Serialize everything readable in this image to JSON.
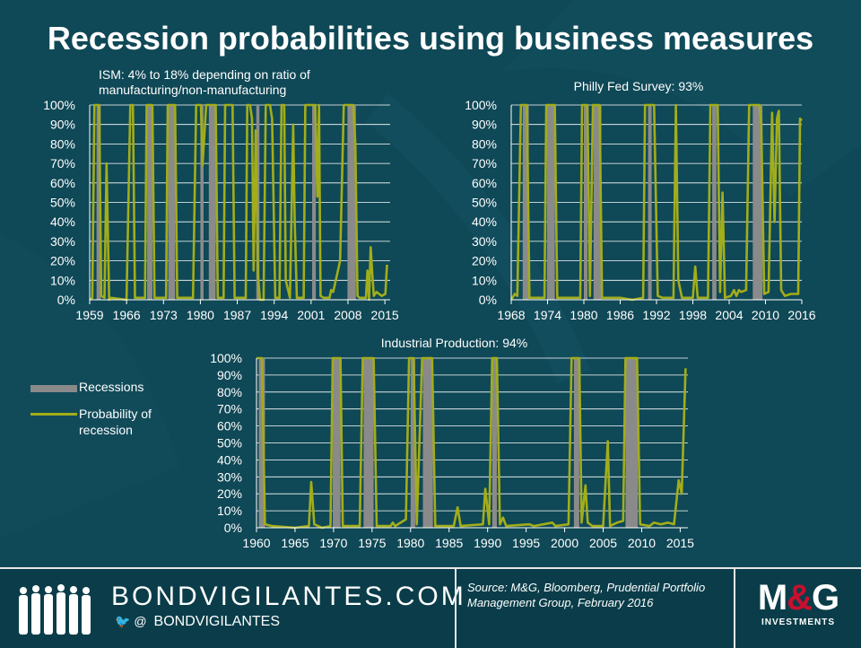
{
  "title": "Recession probabilities using business measures",
  "colors": {
    "background": "#0f4856",
    "probability": "#a2ad1a",
    "recession": "#8a8a8a",
    "grid": "#ffffff",
    "brand_red": "#c8102e"
  },
  "legend": {
    "recessions": "Recessions",
    "probability": "Probability of recession"
  },
  "footer": {
    "site": "BONDVIGILANTES.COM",
    "handle_icons": "🐦 @",
    "handle": "BONDVIGILANTES",
    "source": "Source: M&G, Bloomberg, Prudential Portfolio Management Group, February 2016",
    "logo_m": "M",
    "logo_amp": "&",
    "logo_g": "G",
    "logo_sub": "INVESTMENTS"
  },
  "chart_data": [
    {
      "type": "line",
      "title": "ISM: 4% to 18% depending on ratio of manufacturing/non-manufacturing",
      "xlim": [
        1959,
        2016
      ],
      "ylim": [
        0,
        100
      ],
      "xticks": [
        1959,
        1966,
        1973,
        1980,
        1987,
        1994,
        2001,
        2008,
        2015
      ],
      "yticks": [
        "0%",
        "10%",
        "20%",
        "30%",
        "40%",
        "50%",
        "60%",
        "70%",
        "80%",
        "90%",
        "100%"
      ],
      "recessions": [
        [
          1960.3,
          1961.1
        ],
        [
          1969.9,
          1970.9
        ],
        [
          1973.9,
          1975.2
        ],
        [
          1980.0,
          1980.6
        ],
        [
          1981.6,
          1982.9
        ],
        [
          1990.6,
          1991.2
        ],
        [
          2001.2,
          2001.9
        ],
        [
          2007.9,
          2009.5
        ]
      ],
      "series": [
        {
          "name": "Probability of recession",
          "points": [
            [
              1959,
              0
            ],
            [
              1959.5,
              1
            ],
            [
              1959.9,
              100
            ],
            [
              1960.8,
              100
            ],
            [
              1961.2,
              2
            ],
            [
              1961.8,
              1
            ],
            [
              1962.2,
              70
            ],
            [
              1962.7,
              0
            ],
            [
              1963,
              1
            ],
            [
              1966,
              0
            ],
            [
              1966.7,
              100
            ],
            [
              1967.2,
              100
            ],
            [
              1967.6,
              1
            ],
            [
              1969.5,
              1
            ],
            [
              1969.8,
              100
            ],
            [
              1970.9,
              100
            ],
            [
              1971.3,
              1
            ],
            [
              1973.5,
              1
            ],
            [
              1973.8,
              100
            ],
            [
              1975.2,
              100
            ],
            [
              1975.6,
              1
            ],
            [
              1978.6,
              1
            ],
            [
              1979.2,
              100
            ],
            [
              1980.1,
              100
            ],
            [
              1980.4,
              69
            ],
            [
              1981.1,
              100
            ],
            [
              1982.9,
              100
            ],
            [
              1983.3,
              1
            ],
            [
              1984.4,
              1
            ],
            [
              1984.7,
              100
            ],
            [
              1986.1,
              100
            ],
            [
              1986.5,
              1
            ],
            [
              1988.6,
              1
            ],
            [
              1988.9,
              100
            ],
            [
              1989.4,
              100
            ],
            [
              1989.8,
              93
            ],
            [
              1990.1,
              15
            ],
            [
              1990.5,
              87
            ],
            [
              1990.9,
              14
            ],
            [
              1991.3,
              0
            ],
            [
              1992,
              0
            ],
            [
              1992.4,
              100
            ],
            [
              1993.2,
              100
            ],
            [
              1993.6,
              93
            ],
            [
              1994.2,
              1
            ],
            [
              1995,
              1
            ],
            [
              1995.4,
              100
            ],
            [
              1995.9,
              100
            ],
            [
              1996.2,
              10
            ],
            [
              1997,
              1
            ],
            [
              1997.6,
              90
            ],
            [
              1997.9,
              40
            ],
            [
              1998.3,
              1
            ],
            [
              1999.6,
              1
            ],
            [
              1999.9,
              100
            ],
            [
              2001.8,
              100
            ],
            [
              2002.2,
              53
            ],
            [
              2002.5,
              100
            ],
            [
              2002.8,
              2
            ],
            [
              2003.4,
              1
            ],
            [
              2004.5,
              1
            ],
            [
              2004.8,
              5
            ],
            [
              2005.2,
              4
            ],
            [
              2006.5,
              20
            ],
            [
              2007.2,
              100
            ],
            [
              2009,
              100
            ],
            [
              2009.4,
              80
            ],
            [
              2009.8,
              2
            ],
            [
              2010.2,
              1
            ],
            [
              2011.4,
              1
            ],
            [
              2011.7,
              15
            ],
            [
              2012,
              0
            ],
            [
              2012.3,
              27
            ],
            [
              2012.6,
              14
            ],
            [
              2012.9,
              2
            ],
            [
              2013.4,
              4
            ],
            [
              2013.9,
              3
            ],
            [
              2014.4,
              2
            ],
            [
              2015.1,
              3
            ],
            [
              2015.4,
              18
            ]
          ]
        }
      ],
      "xlabel": "",
      "ylabel": ""
    },
    {
      "type": "line",
      "title": "Philly Fed Survey: 93%",
      "xlim": [
        1968,
        2016
      ],
      "ylim": [
        0,
        100
      ],
      "xticks": [
        1968,
        1974,
        1980,
        1986,
        1992,
        1998,
        2004,
        2010,
        2016
      ],
      "yticks": [
        "0%",
        "10%",
        "20%",
        "30%",
        "40%",
        "50%",
        "60%",
        "70%",
        "80%",
        "90%",
        "100%"
      ],
      "recessions": [
        [
          1969.9,
          1970.9
        ],
        [
          1973.9,
          1975.2
        ],
        [
          1980.0,
          1980.6
        ],
        [
          1981.6,
          1982.9
        ],
        [
          1990.6,
          1991.2
        ],
        [
          2001.2,
          2001.9
        ],
        [
          2007.9,
          2009.5
        ]
      ],
      "series": [
        {
          "name": "Probability of recession",
          "points": [
            [
              1968,
              0
            ],
            [
              1968.6,
              3
            ],
            [
              1969,
              2
            ],
            [
              1969.6,
              100
            ],
            [
              1970.6,
              100
            ],
            [
              1971,
              1
            ],
            [
              1973.5,
              1
            ],
            [
              1973.8,
              100
            ],
            [
              1975.2,
              100
            ],
            [
              1975.6,
              1
            ],
            [
              1979.4,
              1
            ],
            [
              1979.7,
              100
            ],
            [
              1980.6,
              100
            ],
            [
              1981,
              2
            ],
            [
              1981.5,
              100
            ],
            [
              1982.6,
              100
            ],
            [
              1983,
              1
            ],
            [
              1986,
              1
            ],
            [
              1988,
              0
            ],
            [
              1989.8,
              1
            ],
            [
              1990.1,
              100
            ],
            [
              1991.6,
              100
            ],
            [
              1991.9,
              52
            ],
            [
              1992.2,
              2
            ],
            [
              1993,
              1
            ],
            [
              1994,
              1
            ],
            [
              1994.8,
              1
            ],
            [
              1995.2,
              100
            ],
            [
              1995.6,
              10
            ],
            [
              1996.2,
              1
            ],
            [
              1998,
              1
            ],
            [
              1998.4,
              17
            ],
            [
              1998.8,
              1
            ],
            [
              2000.5,
              1
            ],
            [
              2000.9,
              100
            ],
            [
              2002.1,
              100
            ],
            [
              2002.5,
              4
            ],
            [
              2002.9,
              55
            ],
            [
              2003.3,
              1
            ],
            [
              2004.3,
              2
            ],
            [
              2004.8,
              5
            ],
            [
              2005.2,
              2
            ],
            [
              2005.6,
              5
            ],
            [
              2006,
              4
            ],
            [
              2006.8,
              5
            ],
            [
              2007.3,
              100
            ],
            [
              2009,
              100
            ],
            [
              2009.3,
              90
            ],
            [
              2009.8,
              3
            ],
            [
              2010.5,
              4
            ],
            [
              2011.1,
              96
            ],
            [
              2011.5,
              40
            ],
            [
              2011.9,
              93
            ],
            [
              2012.2,
              97
            ],
            [
              2012.6,
              5
            ],
            [
              2013.2,
              2
            ],
            [
              2014.2,
              3
            ],
            [
              2015.4,
              3
            ],
            [
              2015.7,
              93
            ],
            [
              2016,
              92
            ]
          ]
        }
      ],
      "xlabel": "",
      "ylabel": ""
    },
    {
      "type": "line",
      "title": "Industrial Production: 94%",
      "xlim": [
        1960,
        2016
      ],
      "ylim": [
        0,
        100
      ],
      "xticks": [
        1960,
        1965,
        1970,
        1975,
        1980,
        1985,
        1990,
        1995,
        2000,
        2005,
        2010,
        2015
      ],
      "yticks": [
        "0%",
        "10%",
        "20%",
        "30%",
        "40%",
        "50%",
        "60%",
        "70%",
        "80%",
        "90%",
        "100%"
      ],
      "recessions": [
        [
          1960.3,
          1961.1
        ],
        [
          1969.9,
          1970.9
        ],
        [
          1973.9,
          1975.2
        ],
        [
          1980.0,
          1980.6
        ],
        [
          1981.6,
          1982.9
        ],
        [
          1990.6,
          1991.2
        ],
        [
          2001.2,
          2001.9
        ],
        [
          2007.9,
          2009.5
        ]
      ],
      "series": [
        {
          "name": "Probability of recession",
          "points": [
            [
              1960,
              100
            ],
            [
              1960.7,
              100
            ],
            [
              1961.1,
              2
            ],
            [
              1962,
              1
            ],
            [
              1965,
              0
            ],
            [
              1966.8,
              1
            ],
            [
              1967.1,
              27
            ],
            [
              1967.5,
              2
            ],
            [
              1968.5,
              0
            ],
            [
              1969.6,
              1
            ],
            [
              1969.9,
              100
            ],
            [
              1970.9,
              100
            ],
            [
              1971.2,
              1
            ],
            [
              1973.4,
              1
            ],
            [
              1973.8,
              100
            ],
            [
              1975.2,
              100
            ],
            [
              1975.6,
              1
            ],
            [
              1977.4,
              1
            ],
            [
              1977.7,
              3
            ],
            [
              1978,
              1
            ],
            [
              1979.4,
              5
            ],
            [
              1979.8,
              100
            ],
            [
              1980.4,
              100
            ],
            [
              1980.8,
              2
            ],
            [
              1981.5,
              100
            ],
            [
              1982.8,
              100
            ],
            [
              1983.2,
              1
            ],
            [
              1985,
              1
            ],
            [
              1985.6,
              1
            ],
            [
              1986.1,
              12
            ],
            [
              1986.5,
              1
            ],
            [
              1989.4,
              2
            ],
            [
              1989.7,
              23
            ],
            [
              1990.2,
              2
            ],
            [
              1990.6,
              100
            ],
            [
              1991.2,
              100
            ],
            [
              1991.6,
              2
            ],
            [
              1992,
              6
            ],
            [
              1992.4,
              1
            ],
            [
              1995.4,
              2
            ],
            [
              1996,
              1
            ],
            [
              1998.4,
              3
            ],
            [
              1998.8,
              1
            ],
            [
              2000.5,
              2
            ],
            [
              2000.9,
              100
            ],
            [
              2001.9,
              100
            ],
            [
              2002.2,
              3
            ],
            [
              2002.7,
              25
            ],
            [
              2003,
              3
            ],
            [
              2003.6,
              1
            ],
            [
              2005,
              1
            ],
            [
              2005.6,
              51
            ],
            [
              2005.9,
              1
            ],
            [
              2006.8,
              3
            ],
            [
              2007.6,
              4
            ],
            [
              2007.9,
              100
            ],
            [
              2009.4,
              100
            ],
            [
              2009.8,
              2
            ],
            [
              2011,
              1
            ],
            [
              2011.6,
              3
            ],
            [
              2012.5,
              2
            ],
            [
              2013.4,
              3
            ],
            [
              2014.2,
              2
            ],
            [
              2014.8,
              28
            ],
            [
              2015.2,
              20
            ],
            [
              2015.7,
              94
            ]
          ]
        }
      ],
      "xlabel": "",
      "ylabel": ""
    }
  ]
}
